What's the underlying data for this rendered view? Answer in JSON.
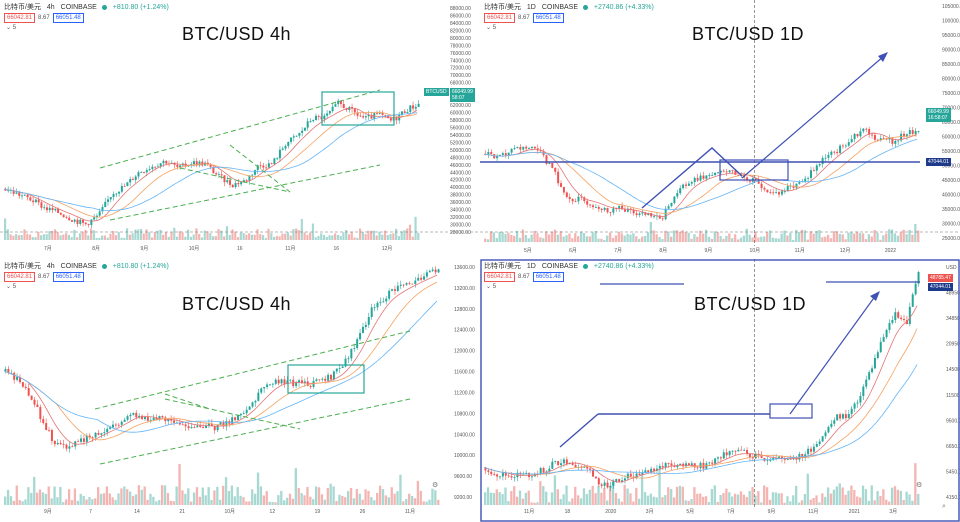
{
  "panels": [
    {
      "id": "tl",
      "header": {
        "symbol": "比特币/美元",
        "interval": "4h",
        "exchange": "COINBASE",
        "change": "+810.80 (+1.24%)"
      },
      "prices": {
        "sell": "66042.81",
        "spread": "8.67",
        "buy": "66051.48"
      },
      "volume_label": "5",
      "big_title": "BTC/USD  4h",
      "price_tag": {
        "label": "BTCUSD",
        "value": "66049.99",
        "time": "58:07"
      },
      "y_ticks": [
        "88000.00",
        "86000.00",
        "84000.00",
        "82000.00",
        "80000.00",
        "78000.00",
        "76000.00",
        "74000.00",
        "72000.00",
        "70000.00",
        "68000.00",
        "66000.00",
        "64000.00",
        "62000.00",
        "60000.00",
        "58000.00",
        "56000.00",
        "54000.00",
        "52000.00",
        "50000.00",
        "48000.00",
        "46000.00",
        "44000.00",
        "42000.00",
        "40000.00",
        "38000.00",
        "36000.00",
        "34000.00",
        "32000.00",
        "30000.00",
        "28000.00"
      ],
      "x_ticks": [
        "7月",
        "8月",
        "9月",
        "10月",
        "16",
        "11月",
        "16",
        "12月"
      ]
    },
    {
      "id": "tr",
      "header": {
        "symbol": "比特币/美元",
        "interval": "1D",
        "exchange": "COINBASE",
        "change": "+2740.86 (+4.33%)"
      },
      "prices": {
        "sell": "66042.81",
        "spread": "8.67",
        "buy": "66051.48"
      },
      "volume_label": "5",
      "big_title": "BTC/USD 1D",
      "price_tag": {
        "label": "",
        "value": "66049.99",
        "time": "16:58:07"
      },
      "level_tag": "47044.01",
      "y_ticks": [
        "105000.00",
        "100000.00",
        "95000.00",
        "90000.00",
        "85000.00",
        "80000.00",
        "75000.00",
        "70000.00",
        "65000.00",
        "60000.00",
        "55000.00",
        "50000.00",
        "45000.00",
        "40000.00",
        "35000.00",
        "30000.00",
        "25000.00"
      ],
      "x_ticks": [
        "5月",
        "6月",
        "7月",
        "8月",
        "9月",
        "10月",
        "11月",
        "12月",
        "2022"
      ]
    },
    {
      "id": "bl",
      "header": {
        "symbol": "比特币/美元",
        "interval": "4h",
        "exchange": "COINBASE",
        "change": "+810.80 (+1.24%)"
      },
      "prices": {
        "sell": "66042.81",
        "spread": "8.67",
        "buy": "66051.48"
      },
      "volume_label": "5",
      "big_title": "BTC/USD 4h",
      "y_ticks": [
        "13600.00",
        "13200.00",
        "12800.00",
        "12400.00",
        "12000.00",
        "11600.00",
        "11200.00",
        "10800.00",
        "10400.00",
        "10000.00",
        "9600.00",
        "9200.00"
      ],
      "x_ticks": [
        "9月",
        "7",
        "14",
        "21",
        "10月",
        "12",
        "19",
        "26",
        "11月"
      ]
    },
    {
      "id": "br",
      "header": {
        "symbol": "比特币/美元",
        "interval": "1D",
        "exchange": "COINBASE",
        "change": "+2740.86 (+4.33%)"
      },
      "prices": {
        "sell": "66042.81",
        "spread": "8.67",
        "buy": "66051.48"
      },
      "volume_label": "5",
      "big_title": "BTC/USD 1D",
      "price_tag": {
        "label": "",
        "value": "48785.47",
        "time": ""
      },
      "level_tag": "47044.01",
      "y_ticks": [
        "USD",
        "48950.00",
        "34850.00",
        "20950.00",
        "14500.00",
        "11500.00",
        "9500.00",
        "6650.00",
        "5450.00",
        "4150.00"
      ],
      "x_ticks": [
        "11月",
        "18",
        "2020",
        "3月",
        "5月",
        "7月",
        "9月",
        "11月",
        "2021",
        "3月"
      ]
    }
  ],
  "chart_data": [
    {
      "type": "line",
      "title": "BTC/USD  4h",
      "ylim": [
        28000,
        88000
      ],
      "series": [
        {
          "values": [
            40800,
            39200,
            37500,
            35100,
            33800,
            31900,
            30300,
            33000,
            39500,
            41800,
            45800,
            47600,
            49200,
            46900,
            48700,
            48300,
            44500,
            42100,
            43300,
            47800,
            48200,
            54200,
            56900,
            61800,
            62100,
            66300,
            63800,
            61600,
            62900,
            60900,
            64200,
            66050
          ]
        }
      ]
    },
    {
      "type": "line",
      "title": "BTC/USD 1D",
      "ylim": [
        25000,
        105000
      ],
      "series": [
        {
          "values": [
            55800,
            54300,
            57000,
            58600,
            56500,
            49500,
            38300,
            37900,
            35700,
            33600,
            34800,
            32300,
            31500,
            29800,
            40100,
            44400,
            46800,
            48200,
            48800,
            47100,
            44600,
            40600,
            41200,
            43700,
            48100,
            54500,
            57400,
            62000,
            66300,
            61500,
            60900,
            63500,
            66050
          ]
        }
      ]
    },
    {
      "type": "line",
      "title": "BTC/USD 4h",
      "ylim": [
        9200,
        13600
      ],
      "series": [
        {
          "values": [
            11650,
            11400,
            10900,
            10300,
            10200,
            10350,
            10500,
            10650,
            10850,
            10700,
            10750,
            10600,
            10620,
            10560,
            10700,
            10900,
            11300,
            11450,
            11420,
            11400,
            11480,
            11720,
            12300,
            12900,
            13150,
            13300,
            13450,
            13580
          ]
        }
      ]
    },
    {
      "type": "line",
      "title": "BTC/USD 1D",
      "ylim": [
        4150,
        48950
      ],
      "series": [
        {
          "values": [
            8900,
            7500,
            7200,
            7300,
            7400,
            8400,
            9800,
            10200,
            9000,
            8100,
            5000,
            6200,
            7100,
            7600,
            8600,
            9300,
            9500,
            9200,
            9100,
            9400,
            11300,
            11700,
            11900,
            11200,
            10700,
            10600,
            10800,
            11000,
            13000,
            15900,
            19000,
            19300,
            23500,
            29000,
            35000,
            40000,
            38000,
            48800
          ]
        }
      ]
    }
  ]
}
